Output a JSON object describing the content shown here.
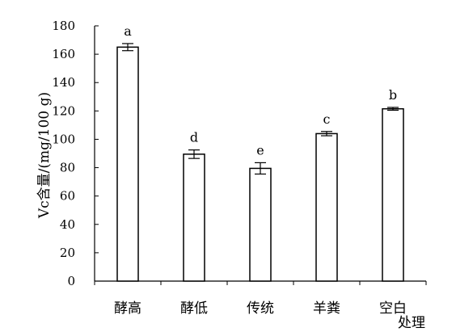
{
  "chart_data": {
    "type": "bar",
    "categories": [
      "酵高",
      "酵低",
      "传统",
      "羊粪",
      "空白"
    ],
    "values": [
      165,
      89.5,
      79.5,
      104,
      121.5
    ],
    "errors": [
      2.5,
      3,
      4,
      1.5,
      1
    ],
    "significance_letters": [
      "a",
      "d",
      "e",
      "c",
      "b"
    ],
    "xlabel": "处理",
    "ylabel": "Vc含量/(mg/100 g)",
    "ylim": [
      0,
      180
    ],
    "yticks": [
      0,
      20,
      40,
      60,
      80,
      100,
      120,
      140,
      160,
      180
    ],
    "grid": false,
    "legend": "none",
    "bar_fill": "#ffffff",
    "bar_stroke": "#000000"
  }
}
